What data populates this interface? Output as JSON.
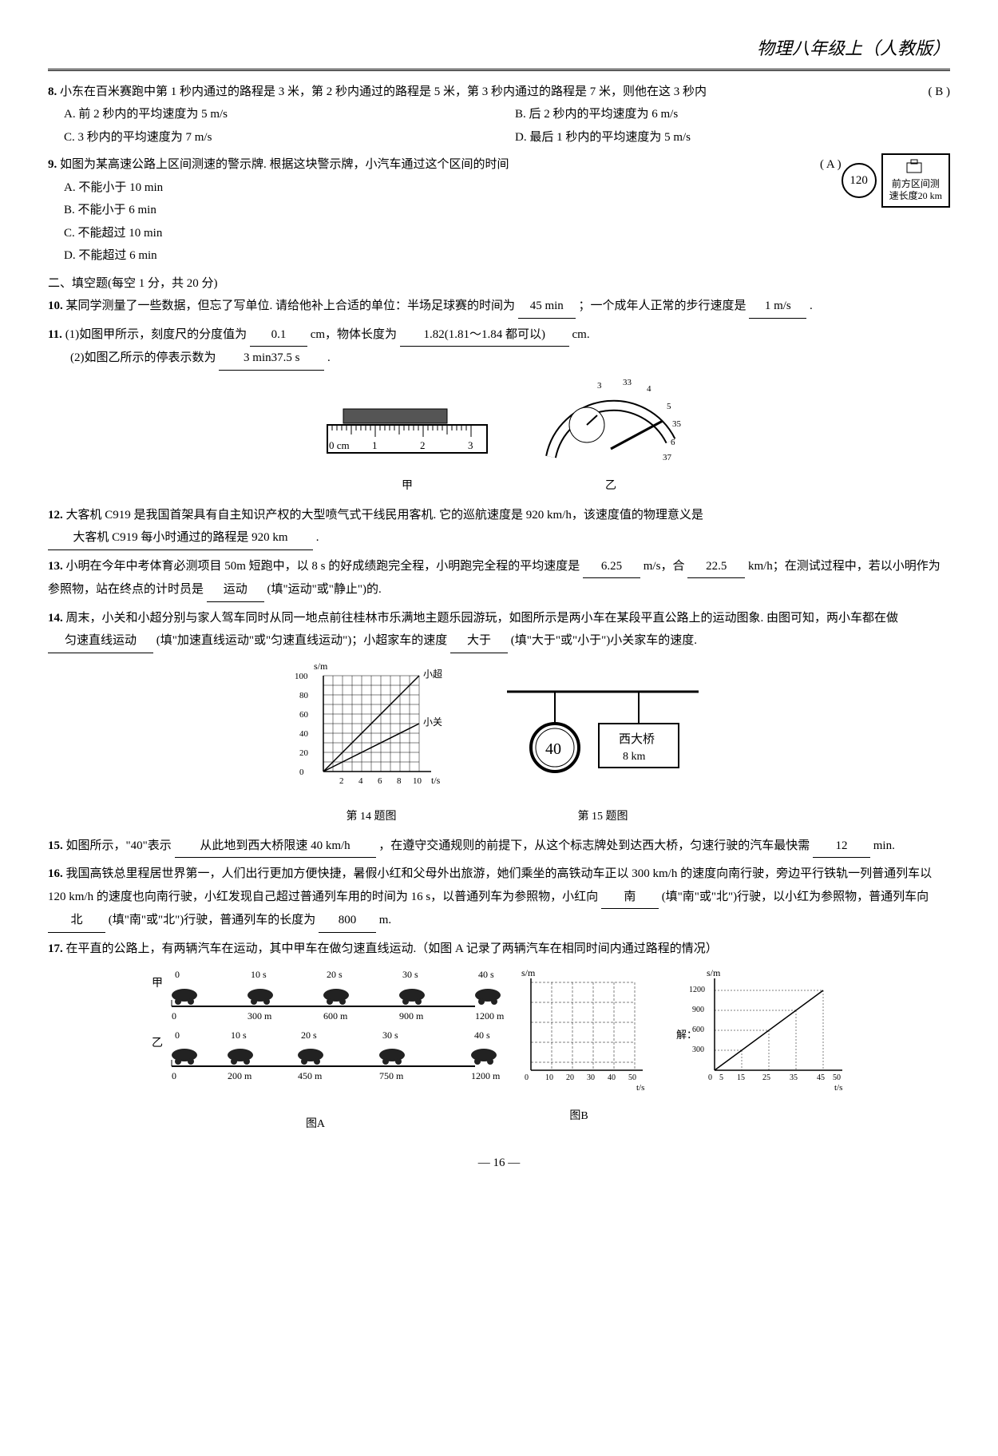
{
  "page_header": "物理八年级上（人教版）",
  "page_number": "— 16 —",
  "q8": {
    "num": "8.",
    "text": "小东在百米赛跑中第 1 秒内通过的路程是 3 米，第 2 秒内通过的路程是 5 米，第 3 秒内通过的路程是 7 米，则他在这 3 秒内",
    "answer": "( B )",
    "A": "A. 前 2 秒内的平均速度为 5 m/s",
    "B": "B. 后 2 秒内的平均速度为 6 m/s",
    "C": "C. 3 秒内的平均速度为 7 m/s",
    "D": "D. 最后 1 秒内的平均速度为 5 m/s"
  },
  "q9": {
    "num": "9.",
    "text": "如图为某高速公路上区间测速的警示牌. 根据这块警示牌，小汽车通过这个区间的时间",
    "answer": "( A )",
    "A": "A. 不能小于 10 min",
    "B": "B. 不能小于 6 min",
    "C": "C. 不能超过 10 min",
    "D": "D. 不能超过 6 min",
    "sign_120": "120",
    "sign_text1": "前方区间测",
    "sign_text2": "速长度20 km"
  },
  "section2": "二、填空题(每空 1 分，共 20 分)",
  "q10": {
    "num": "10.",
    "text1": "某同学测量了一些数据，但忘了写单位. 请给他补上合适的单位：半场足球赛的时间为",
    "blank1": "45 min",
    "text2": "；一个成年人正常的步行速度是",
    "blank2": "1 m/s",
    "text3": "."
  },
  "q11": {
    "num": "11.",
    "p1_text1": "(1)如图甲所示，刻度尺的分度值为",
    "p1_blank1": "0.1",
    "p1_text2": "cm，物体长度为",
    "p1_blank2": "1.82(1.81～1.84 都可以)",
    "p1_text3": "cm.",
    "p2_text1": "(2)如图乙所示的停表示数为",
    "p2_blank1": "3 min37.5 s",
    "p2_text2": ".",
    "ruler_labels": [
      "0 cm",
      "1",
      "2",
      "3"
    ],
    "cap_jia": "甲",
    "cap_yi": "乙",
    "stopwatch_ticks": [
      "3",
      "33",
      "4",
      "5",
      "35",
      "6",
      "37"
    ]
  },
  "q12": {
    "num": "12.",
    "text1": "大客机 C919 是我国首架具有自主知识产权的大型喷气式干线民用客机. 它的巡航速度是 920 km/h，该速度值的物理意义是",
    "blank1": "大客机 C919 每小时通过的路程是 920 km",
    "text2": "."
  },
  "q13": {
    "num": "13.",
    "text1": "小明在今年中考体育必测项目 50m 短跑中，以 8 s 的好成绩跑完全程，小明跑完全程的平均速度是",
    "blank1": "6.25",
    "text2": "m/s，合",
    "blank2": "22.5",
    "text3": "km/h；在测试过程中，若以小明作为参照物，站在终点的计时员是",
    "blank3": "运动",
    "text4": "(填\"运动\"或\"静止\")的."
  },
  "q14": {
    "num": "14.",
    "text1": "周末，小关和小超分别与家人驾车同时从同一地点前往桂林市乐满地主题乐园游玩，如图所示是两小车在某段平直公路上的运动图象. 由图可知，两小车都在做",
    "blank1": "匀速直线运动",
    "text2": "(填\"加速直线运动\"或\"匀速直线运动\")；小超家车的速度",
    "blank2": "大于",
    "text3": "(填\"大于\"或\"小于\")小关家车的速度.",
    "chart": {
      "type": "line",
      "ylabel": "s/m",
      "xlabel": "t/s",
      "yticks": [
        0,
        20,
        40,
        60,
        80,
        100
      ],
      "xticks": [
        0,
        2,
        4,
        6,
        8,
        10
      ],
      "series": [
        {
          "name": "小超",
          "points": [
            [
              0,
              0
            ],
            [
              10,
              100
            ]
          ],
          "color": "#000"
        },
        {
          "name": "小关",
          "points": [
            [
              0,
              0
            ],
            [
              10,
              50
            ]
          ],
          "color": "#000"
        }
      ],
      "grid_color": "#000"
    },
    "caption": "第 14 题图"
  },
  "q15": {
    "num": "15.",
    "text1": "如图所示，\"40\"表示",
    "blank1": "从此地到西大桥限速 40 km/h",
    "text2": "，在遵守交通规则的前提下，从这个标志牌处到达西大桥，匀速行驶的汽车最快需",
    "blank2": "12",
    "text3": "min.",
    "sign_40": "40",
    "sign_label1": "西大桥",
    "sign_label2": "8 km",
    "caption": "第 15 题图"
  },
  "q16": {
    "num": "16.",
    "text1": "我国高铁总里程居世界第一，人们出行更加方便快捷，暑假小红和父母外出旅游，她们乘坐的高铁动车正以 300 km/h 的速度向南行驶，旁边平行铁轨一列普通列车以 120 km/h 的速度也向南行驶，小红发现自己超过普通列车用的时间为 16 s，以普通列车为参照物，小红向",
    "blank1": "南",
    "text2": "(填\"南\"或\"北\")行驶，以小红为参照物，普通列车向",
    "blank2": "北",
    "text3": "(填\"南\"或\"北\")行驶，普通列车的长度为",
    "blank3": "800",
    "text4": "m."
  },
  "q17": {
    "num": "17.",
    "text": "在平直的公路上，有两辆汽车在运动，其中甲车在做匀速直线运动.（如图 A 记录了两辆汽车在相同时间内通过路程的情况）",
    "figA": {
      "jia_label": "甲",
      "yi_label": "乙",
      "time_labels": [
        "0",
        "10 s",
        "20 s",
        "30 s",
        "40 s"
      ],
      "jia_distances": [
        "0",
        "300 m",
        "600 m",
        "900 m",
        "1200 m"
      ],
      "yi_distances": [
        "0",
        "200 m",
        "450 m",
        "750 m",
        "1200 m"
      ],
      "caption": "图A"
    },
    "figB": {
      "type": "line",
      "ylabel": "s/m",
      "xlabel": "t/s",
      "xticks": [
        0,
        10,
        20,
        30,
        40,
        50
      ],
      "caption": "图B"
    },
    "figSol": {
      "ylabel": "s/m",
      "xlabel": "t/s",
      "yticks": [
        0,
        300,
        600,
        900,
        1200
      ],
      "xticks": [
        0,
        5,
        15,
        25,
        35,
        45,
        50
      ],
      "label": "解：",
      "caption": ""
    }
  }
}
